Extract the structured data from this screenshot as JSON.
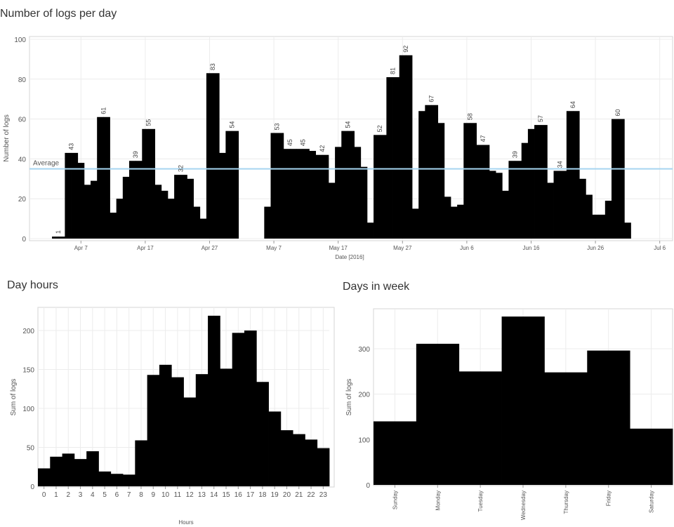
{
  "chart_data": [
    {
      "type": "bar",
      "title": "Number of logs per day",
      "xlabel": "Date [2016]",
      "ylabel": "Number of logs",
      "ylim": [
        0,
        100
      ],
      "yticks": [
        0,
        20,
        40,
        60,
        80,
        100
      ],
      "xlim": [
        "2016-03-30",
        "2016-07-08"
      ],
      "xticks": [
        {
          "date": "2016-04-07",
          "label": "Apr 7"
        },
        {
          "date": "2016-04-17",
          "label": "Apr 17"
        },
        {
          "date": "2016-04-27",
          "label": "Apr 27"
        },
        {
          "date": "2016-05-07",
          "label": "May 7"
        },
        {
          "date": "2016-05-17",
          "label": "May 17"
        },
        {
          "date": "2016-05-27",
          "label": "May 27"
        },
        {
          "date": "2016-06-06",
          "label": "Jun 6"
        },
        {
          "date": "2016-06-16",
          "label": "Jun 16"
        },
        {
          "date": "2016-06-26",
          "label": "Jun 26"
        },
        {
          "date": "2016-07-06",
          "label": "Jul 6"
        }
      ],
      "average": {
        "label": "Average",
        "value": 35
      },
      "bar_color": "#000000",
      "average_color": "#a6d5f0",
      "grid": true,
      "points": [
        {
          "date": "2016-04-03",
          "value": 1,
          "label": "1"
        },
        {
          "date": "2016-04-04",
          "value": 1
        },
        {
          "date": "2016-04-05",
          "value": 43,
          "label": "43"
        },
        {
          "date": "2016-04-06",
          "value": 43
        },
        {
          "date": "2016-04-07",
          "value": 38
        },
        {
          "date": "2016-04-08",
          "value": 27
        },
        {
          "date": "2016-04-09",
          "value": 29
        },
        {
          "date": "2016-04-10",
          "value": 61,
          "label": "61"
        },
        {
          "date": "2016-04-11",
          "value": 61
        },
        {
          "date": "2016-04-12",
          "value": 13
        },
        {
          "date": "2016-04-13",
          "value": 20
        },
        {
          "date": "2016-04-14",
          "value": 31
        },
        {
          "date": "2016-04-15",
          "value": 39,
          "label": "39"
        },
        {
          "date": "2016-04-16",
          "value": 39
        },
        {
          "date": "2016-04-17",
          "value": 55,
          "label": "55"
        },
        {
          "date": "2016-04-18",
          "value": 55
        },
        {
          "date": "2016-04-19",
          "value": 27
        },
        {
          "date": "2016-04-20",
          "value": 24
        },
        {
          "date": "2016-04-21",
          "value": 20
        },
        {
          "date": "2016-04-22",
          "value": 32,
          "label": "32"
        },
        {
          "date": "2016-04-23",
          "value": 32
        },
        {
          "date": "2016-04-24",
          "value": 30
        },
        {
          "date": "2016-04-25",
          "value": 16
        },
        {
          "date": "2016-04-26",
          "value": 10
        },
        {
          "date": "2016-04-27",
          "value": 83,
          "label": "83"
        },
        {
          "date": "2016-04-28",
          "value": 83
        },
        {
          "date": "2016-04-29",
          "value": 43
        },
        {
          "date": "2016-04-30",
          "value": 54,
          "label": "54"
        },
        {
          "date": "2016-05-01",
          "value": 54
        },
        {
          "date": "2016-05-06",
          "value": 16
        },
        {
          "date": "2016-05-07",
          "value": 53,
          "label": "53"
        },
        {
          "date": "2016-05-08",
          "value": 53
        },
        {
          "date": "2016-05-09",
          "value": 45,
          "label": "45"
        },
        {
          "date": "2016-05-10",
          "value": 45
        },
        {
          "date": "2016-05-11",
          "value": 45,
          "label": "45"
        },
        {
          "date": "2016-05-12",
          "value": 45
        },
        {
          "date": "2016-05-13",
          "value": 44
        },
        {
          "date": "2016-05-14",
          "value": 42,
          "label": "42"
        },
        {
          "date": "2016-05-15",
          "value": 42
        },
        {
          "date": "2016-05-16",
          "value": 28
        },
        {
          "date": "2016-05-17",
          "value": 46
        },
        {
          "date": "2016-05-18",
          "value": 54,
          "label": "54"
        },
        {
          "date": "2016-05-19",
          "value": 54
        },
        {
          "date": "2016-05-20",
          "value": 46
        },
        {
          "date": "2016-05-21",
          "value": 36
        },
        {
          "date": "2016-05-22",
          "value": 8
        },
        {
          "date": "2016-05-23",
          "value": 52,
          "label": "52"
        },
        {
          "date": "2016-05-24",
          "value": 52
        },
        {
          "date": "2016-05-25",
          "value": 81,
          "label": "81"
        },
        {
          "date": "2016-05-26",
          "value": 81
        },
        {
          "date": "2016-05-27",
          "value": 92,
          "label": "92"
        },
        {
          "date": "2016-05-28",
          "value": 92
        },
        {
          "date": "2016-05-29",
          "value": 15
        },
        {
          "date": "2016-05-30",
          "value": 64
        },
        {
          "date": "2016-05-31",
          "value": 67,
          "label": "67"
        },
        {
          "date": "2016-06-01",
          "value": 67
        },
        {
          "date": "2016-06-02",
          "value": 58
        },
        {
          "date": "2016-06-03",
          "value": 21
        },
        {
          "date": "2016-06-04",
          "value": 16
        },
        {
          "date": "2016-06-05",
          "value": 17
        },
        {
          "date": "2016-06-06",
          "value": 58,
          "label": "58"
        },
        {
          "date": "2016-06-07",
          "value": 58
        },
        {
          "date": "2016-06-08",
          "value": 47,
          "label": "47"
        },
        {
          "date": "2016-06-09",
          "value": 47
        },
        {
          "date": "2016-06-10",
          "value": 34
        },
        {
          "date": "2016-06-11",
          "value": 33
        },
        {
          "date": "2016-06-12",
          "value": 24
        },
        {
          "date": "2016-06-13",
          "value": 39,
          "label": "39"
        },
        {
          "date": "2016-06-14",
          "value": 39
        },
        {
          "date": "2016-06-15",
          "value": 48
        },
        {
          "date": "2016-06-16",
          "value": 55
        },
        {
          "date": "2016-06-17",
          "value": 57,
          "label": "57"
        },
        {
          "date": "2016-06-18",
          "value": 57
        },
        {
          "date": "2016-06-19",
          "value": 28
        },
        {
          "date": "2016-06-20",
          "value": 34,
          "label": "34"
        },
        {
          "date": "2016-06-21",
          "value": 34
        },
        {
          "date": "2016-06-22",
          "value": 64,
          "label": "64"
        },
        {
          "date": "2016-06-23",
          "value": 64
        },
        {
          "date": "2016-06-24",
          "value": 30
        },
        {
          "date": "2016-06-25",
          "value": 22
        },
        {
          "date": "2016-06-26",
          "value": 12
        },
        {
          "date": "2016-06-27",
          "value": 12
        },
        {
          "date": "2016-06-28",
          "value": 19
        },
        {
          "date": "2016-06-29",
          "value": 60,
          "label": "60"
        },
        {
          "date": "2016-06-30",
          "value": 60
        },
        {
          "date": "2016-07-01",
          "value": 8
        }
      ]
    },
    {
      "type": "bar",
      "title": "Day hours",
      "xlabel": "Hours",
      "ylabel": "Sum of logs",
      "ylim": [
        0,
        225
      ],
      "yticks": [
        0,
        50,
        100,
        150,
        200
      ],
      "bar_color": "#000000",
      "grid": true,
      "categories": [
        "0",
        "1",
        "2",
        "3",
        "4",
        "5",
        "6",
        "7",
        "8",
        "9",
        "10",
        "11",
        "12",
        "13",
        "14",
        "15",
        "16",
        "17",
        "18",
        "19",
        "20",
        "21",
        "22",
        "23"
      ],
      "values": [
        23,
        38,
        42,
        35,
        45,
        19,
        16,
        15,
        59,
        143,
        156,
        140,
        114,
        144,
        219,
        151,
        197,
        200,
        134,
        96,
        72,
        67,
        60,
        49
      ]
    },
    {
      "type": "bar",
      "title": "Days in week",
      "xlabel": "",
      "ylabel": "Sum of logs",
      "ylim": [
        0,
        385
      ],
      "yticks": [
        0,
        100,
        200,
        300
      ],
      "bar_color": "#000000",
      "grid": true,
      "categories": [
        "Sunday",
        "Monday",
        "Tuesday",
        "Wednesday",
        "Thursday",
        "Friday",
        "Saturday"
      ],
      "values": [
        140,
        311,
        250,
        371,
        248,
        296,
        124
      ]
    }
  ]
}
